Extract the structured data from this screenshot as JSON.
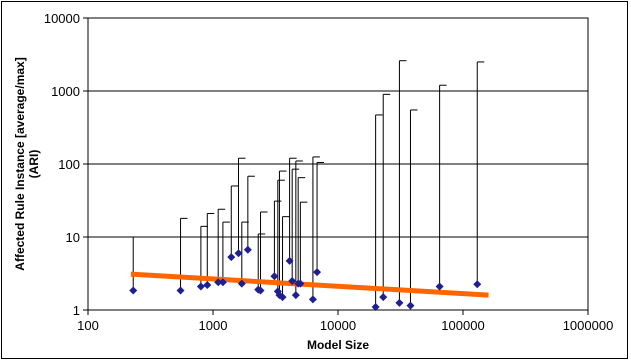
{
  "chart_data": {
    "type": "scatter",
    "xlabel": "Model Size",
    "ylabel": "Affected Rule Instance [average/max] (ARI)",
    "x_scale": "log",
    "y_scale": "log",
    "xlim": [
      100,
      1000000
    ],
    "ylim": [
      1,
      10000
    ],
    "x_ticks": [
      "100",
      "1000",
      "10000",
      "100000",
      "1000000"
    ],
    "y_ticks": [
      "1",
      "10",
      "100",
      "1000",
      "10000"
    ],
    "grid": "horizontal major gridlines",
    "legend": "none",
    "colors": {
      "points": "#1f1f8f",
      "trend": "#ff6600",
      "error_bars": "#000000",
      "grid": "#000000"
    },
    "points": [
      {
        "x": 230,
        "avg": 1.85,
        "max": 10
      },
      {
        "x": 550,
        "avg": 1.85,
        "max": 18
      },
      {
        "x": 800,
        "avg": 2.1,
        "max": 14
      },
      {
        "x": 900,
        "avg": 2.2,
        "max": 21
      },
      {
        "x": 1100,
        "avg": 2.4,
        "max": 24
      },
      {
        "x": 1200,
        "avg": 2.4,
        "max": 16
      },
      {
        "x": 1400,
        "avg": 5.3,
        "max": 50
      },
      {
        "x": 1600,
        "avg": 6.0,
        "max": 120
      },
      {
        "x": 1700,
        "avg": 2.3,
        "max": 16
      },
      {
        "x": 1900,
        "avg": 6.7,
        "max": 68
      },
      {
        "x": 2300,
        "avg": 1.9,
        "max": 11
      },
      {
        "x": 2400,
        "avg": 1.85,
        "max": 22
      },
      {
        "x": 3100,
        "avg": 2.9,
        "max": 31
      },
      {
        "x": 3300,
        "avg": 1.8,
        "max": 60
      },
      {
        "x": 3400,
        "avg": 1.6,
        "max": 80
      },
      {
        "x": 3600,
        "avg": 1.5,
        "max": 19
      },
      {
        "x": 4100,
        "avg": 4.7,
        "max": 120
      },
      {
        "x": 4300,
        "avg": 2.5,
        "max": 85
      },
      {
        "x": 4600,
        "avg": 1.6,
        "max": 110
      },
      {
        "x": 4800,
        "avg": 2.3,
        "max": 65
      },
      {
        "x": 5000,
        "avg": 2.3,
        "max": 30
      },
      {
        "x": 6300,
        "avg": 1.4,
        "max": 125
      },
      {
        "x": 6800,
        "avg": 3.3,
        "max": 105
      },
      {
        "x": 20000,
        "avg": 1.1,
        "max": 470
      },
      {
        "x": 23000,
        "avg": 1.5,
        "max": 900
      },
      {
        "x": 31000,
        "avg": 1.25,
        "max": 2600
      },
      {
        "x": 38000,
        "avg": 1.15,
        "max": 550
      },
      {
        "x": 65000,
        "avg": 2.1,
        "max": 1200
      },
      {
        "x": 130000,
        "avg": 2.25,
        "max": 2500
      }
    ],
    "trendline": {
      "x_start": 220,
      "y_start": 3.1,
      "x_end": 160000,
      "y_end": 1.6
    }
  }
}
